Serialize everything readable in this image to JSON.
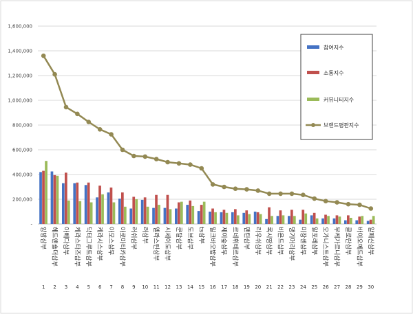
{
  "chart_data": {
    "type": "bar",
    "yticks": [
      "-",
      "200,000",
      "400,000",
      "600,000",
      "800,000",
      "1,000,000",
      "1,200,000",
      "1,400,000",
      "1,600,000"
    ],
    "ylim": [
      0,
      1600000
    ],
    "grid": true,
    "legend_position": "right",
    "ranks": [
      "1",
      "2",
      "3",
      "4",
      "5",
      "6",
      "7",
      "8",
      "9",
      "10",
      "11",
      "12",
      "13",
      "14",
      "15",
      "16",
      "17",
      "18",
      "19",
      "20",
      "21",
      "22",
      "23",
      "24",
      "25",
      "26",
      "27",
      "28",
      "29",
      "30"
    ],
    "categories": [
      "앙방삼부",
      "헤드앤숄더삼부",
      "아베다삼부",
      "케라스타즈삼부",
      "닥터그루트삼부",
      "케라시스삼부",
      "아모스삼부",
      "아로마티카삼부",
      "러쉬삼부",
      "려삼부",
      "엘라스틴삼부",
      "시세이도삼부",
      "쿤달삼부",
      "도브삼부",
      "ts삼부",
      "밀크바오밥삼부",
      "제이숲삼부",
      "르네휘테르삼부",
      "팬틴삼부",
      "라우쉬삼부",
      "록시땅삼부",
      "비욘드삼부",
      "댕기머리삼부",
      "미장센삼부",
      "알포레삼부",
      "오가니스트삼부",
      "부케가르니삼부",
      "클로란삼부",
      "바이오메드삼부",
      "알페신삼부"
    ],
    "series": [
      {
        "name": "참여지수",
        "color": "#4472c4",
        "values": [
          420000,
          425000,
          330000,
          330000,
          315000,
          215000,
          255000,
          205000,
          125000,
          195000,
          130000,
          130000,
          125000,
          155000,
          105000,
          100000,
          95000,
          95000,
          90000,
          100000,
          40000,
          65000,
          65000,
          35000,
          70000,
          45000,
          45000,
          30000,
          30000,
          25000
        ]
      },
      {
        "name": "소통지수",
        "color": "#c0504d",
        "values": [
          430000,
          395000,
          415000,
          335000,
          335000,
          310000,
          295000,
          255000,
          220000,
          215000,
          235000,
          235000,
          175000,
          190000,
          155000,
          125000,
          115000,
          120000,
          110000,
          95000,
          135000,
          110000,
          115000,
          115000,
          90000,
          75000,
          70000,
          70000,
          60000,
          35000
        ]
      },
      {
        "name": "커뮤니티지수",
        "color": "#9bbb59",
        "values": [
          510000,
          390000,
          190000,
          185000,
          175000,
          240000,
          175000,
          140000,
          200000,
          140000,
          155000,
          120000,
          180000,
          145000,
          180000,
          95000,
          90000,
          70000,
          80000,
          80000,
          65000,
          70000,
          65000,
          85000,
          45000,
          65000,
          60000,
          50000,
          65000,
          65000
        ]
      },
      {
        "name": "브랜드평판지수",
        "color": "#938953",
        "type": "line",
        "values": [
          1360000,
          1210000,
          945000,
          890000,
          825000,
          765000,
          725000,
          600000,
          550000,
          545000,
          525000,
          500000,
          490000,
          480000,
          450000,
          320000,
          300000,
          285000,
          280000,
          270000,
          245000,
          245000,
          245000,
          235000,
          205000,
          185000,
          175000,
          160000,
          155000,
          125000
        ]
      }
    ]
  }
}
